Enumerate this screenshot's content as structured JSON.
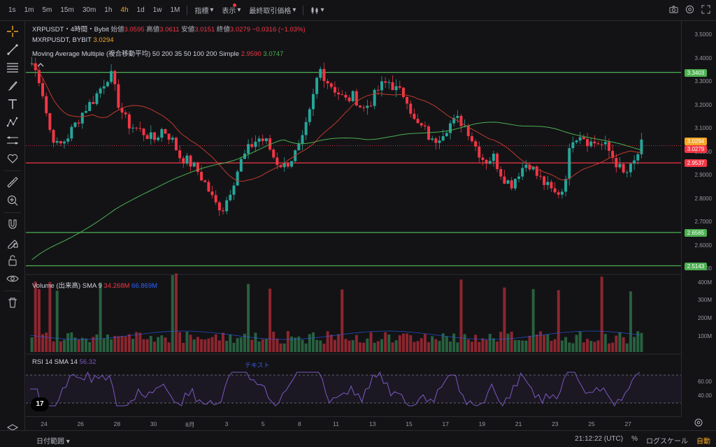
{
  "toolbar": {
    "timeframes": [
      "1s",
      "1m",
      "5m",
      "15m",
      "30m",
      "1h",
      "4h",
      "1d",
      "1w",
      "1M"
    ],
    "active_timeframe": "4h",
    "indicators_label": "指標",
    "display_label": "表示",
    "last_price_label": "最終取引価格"
  },
  "legend": {
    "symbol": "XRPUSDT・4時間・Bybit",
    "open_label": "始値",
    "open": "3.0595",
    "high_label": "高値",
    "high": "3.0611",
    "low_label": "安値",
    "low": "3.0151",
    "close_label": "終値",
    "close": "3.0279",
    "change": "−0.0316 (−1.03%)",
    "compare_symbol": "MXRPUSDT, BYBIT",
    "compare_value": "3.0294",
    "ma_title": "Moving Average Multiple (複合移動平均) 50 200 35 50 100 200 Simple",
    "ma_value_1": "2.9590",
    "ma_value_2": "3.0747"
  },
  "volume": {
    "title": "Volume (出来高) SMA 9",
    "value": "34.268M",
    "sma": "66.869M"
  },
  "rsi": {
    "title": "RSI 14 SMA 14",
    "value": "56.32",
    "annotation": "テキスト"
  },
  "price_scale": {
    "ticks": [
      "3.5000",
      "3.4000",
      "3.3000",
      "3.2000",
      "3.1000",
      "3.0000",
      "2.9000",
      "2.8000",
      "2.7000",
      "2.6000",
      "2.5000"
    ],
    "badges": [
      {
        "label": "3.3403",
        "color": "#4caf50"
      },
      {
        "label": "3.0294",
        "color": "#f5a623"
      },
      {
        "label": "3.0279",
        "color": "#f23645"
      },
      {
        "label": "2.9537",
        "color": "#f23645"
      },
      {
        "label": "2.6565",
        "color": "#4caf50"
      },
      {
        "label": "2.5143",
        "color": "#4caf50"
      }
    ],
    "vol_ticks": [
      "400M",
      "300M",
      "200M",
      "100M"
    ],
    "rsi_ticks": [
      "60.00",
      "40.00"
    ]
  },
  "dates": [
    "24",
    "26",
    "28",
    "30",
    "8月",
    "3",
    "5",
    "8",
    "11",
    "13",
    "15",
    "17",
    "19",
    "21",
    "23",
    "25",
    "27"
  ],
  "bottom": {
    "date_range": "日付範囲",
    "time": "21:12:22 (UTC)",
    "percent": "%",
    "log": "ログスケール",
    "auto": "自動"
  },
  "colors": {
    "up": "#26a69a",
    "up_bar": "#3aa363",
    "down": "#f23645",
    "level_green": "#4caf50",
    "level_red": "#f23645",
    "ma_short": "#c0392b",
    "ma_long": "#4caf50",
    "rsi_line": "#7e57c2"
  },
  "chart_data": {
    "type": "candlestick",
    "symbol": "XRPUSDT",
    "interval": "4h",
    "ylim": [
      2.48,
      3.56
    ],
    "horizontal_levels": [
      3.3403,
      2.9537,
      2.6565,
      2.5143
    ],
    "price_path": [
      3.38,
      3.3,
      3.1,
      3.02,
      3.06,
      3.12,
      3.18,
      3.22,
      3.28,
      3.34,
      3.2,
      3.12,
      3.1,
      3.08,
      3.05,
      3.1,
      3.06,
      2.98,
      2.96,
      2.92,
      2.86,
      2.78,
      2.76,
      2.86,
      2.96,
      3.02,
      3.06,
      3.04,
      2.96,
      2.94,
      2.98,
      3.04,
      3.18,
      3.36,
      3.3,
      3.26,
      3.22,
      3.24,
      3.18,
      3.22,
      3.28,
      3.3,
      3.26,
      3.24,
      3.12,
      3.1,
      3.04,
      3.08,
      3.12,
      3.14,
      3.1,
      3.02,
      2.96,
      2.98,
      2.9,
      2.86,
      2.92,
      2.96,
      2.9,
      2.86,
      2.82,
      2.84,
      3.06,
      3.08,
      3.04,
      3.04,
      3.02,
      2.96,
      2.9,
      2.94,
      3.03
    ]
  }
}
